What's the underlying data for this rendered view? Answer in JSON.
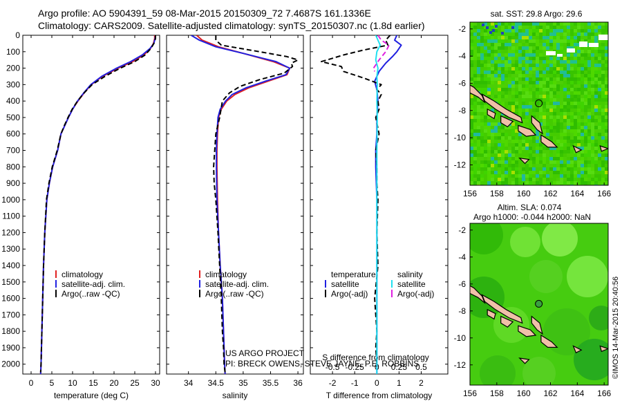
{
  "header": {
    "line1": "Argo profile: AO 5904391_59 08-Mar-2015 20150309_72 7.4687S 161.1336E",
    "line2": "Climatology: CARS2009. Satellite-adjusted climatology: synTS_20150307.nc (1.8d earlier)"
  },
  "credits": {
    "project": "US ARGO PROJECT",
    "pi": "PI: BRECK OWENS, STEVE JAYNE, P.E. ROBBINS",
    "stamp": "©IMOS 14-Mar-2015 20:40:56"
  },
  "colors": {
    "climatology": "#e02020",
    "satellite": "#2020e0",
    "argo": "#000000",
    "satellite_salinity": "#20e0f0",
    "argo_salinity": "#e020e0",
    "land": "#f0c0a8"
  },
  "chart_data": [
    {
      "type": "line",
      "xlabel": "temperature (deg C)",
      "ylabel": "",
      "xlim": [
        -2,
        31
      ],
      "ylim": [
        2060,
        0
      ],
      "xticks": [
        "0",
        "5",
        "10",
        "15",
        "20",
        "25",
        "30"
      ],
      "xtick_values": [
        0,
        5,
        10,
        15,
        20,
        25,
        30
      ],
      "yticks": [
        "0",
        "100",
        "200",
        "300",
        "400",
        "500",
        "600",
        "700",
        "800",
        "900",
        "1000",
        "1100",
        "1200",
        "1300",
        "1400",
        "1500",
        "1600",
        "1700",
        "1800",
        "1900",
        "2000"
      ],
      "ytick_values": [
        0,
        100,
        200,
        300,
        400,
        500,
        600,
        700,
        800,
        900,
        1000,
        1100,
        1200,
        1300,
        1400,
        1500,
        1600,
        1700,
        1800,
        1900,
        2000
      ],
      "legend": [
        "climatology",
        "satellite-adj. clim.",
        "Argo(..raw -QC)"
      ],
      "legend_placement": "lower-right",
      "series": [
        {
          "name": "climatology",
          "style": "solid",
          "color": "#e02020",
          "x": [
            29.8,
            29.8,
            29.5,
            28.8,
            27.2,
            24.5,
            21,
            17.2,
            14.5,
            12.8,
            11.3,
            10,
            9,
            8.1,
            7.2,
            6.4,
            5.2,
            4.4,
            3.8,
            3.3,
            3,
            2.8,
            2.6,
            2.4,
            2.3
          ],
          "y": [
            0,
            20,
            50,
            80,
            120,
            160,
            200,
            250,
            300,
            350,
            400,
            450,
            500,
            550,
            600,
            700,
            800,
            900,
            1000,
            1200,
            1400,
            1600,
            1800,
            2000,
            2060
          ]
        },
        {
          "name": "satellite-adj. clim.",
          "style": "solid",
          "color": "#2020e0",
          "x": [
            30,
            29.9,
            29.6,
            28.7,
            26.8,
            24,
            20.6,
            17,
            14.4,
            12.7,
            11.2,
            10,
            9,
            8.1,
            7.2,
            6.4,
            5.2,
            4.4,
            3.8,
            3.3,
            3,
            2.8,
            2.6,
            2.4,
            2.3
          ],
          "y": [
            0,
            20,
            50,
            80,
            120,
            160,
            200,
            250,
            300,
            350,
            400,
            450,
            500,
            550,
            600,
            700,
            800,
            900,
            1000,
            1200,
            1400,
            1600,
            1800,
            2000,
            2060
          ]
        },
        {
          "name": "Argo(..raw -QC)",
          "style": "dashed",
          "color": "#000000",
          "x": [
            30,
            30,
            29.6,
            28.9,
            27.5,
            25,
            21.5,
            17.8,
            14.7,
            12.8,
            11.2,
            9.9,
            8.9,
            8,
            7.2,
            6.3,
            5.1,
            4.3,
            3.7,
            3.3,
            3,
            2.8,
            2.6,
            2.4,
            2.3
          ],
          "y": [
            0,
            20,
            50,
            80,
            120,
            160,
            200,
            250,
            300,
            350,
            400,
            450,
            500,
            550,
            600,
            700,
            800,
            900,
            1000,
            1200,
            1400,
            1600,
            1800,
            2000,
            2050
          ]
        }
      ]
    },
    {
      "type": "line",
      "xlabel": "salinity",
      "ylabel": "",
      "xlim": [
        33.6,
        36.1
      ],
      "ylim": [
        2060,
        0
      ],
      "xticks": [
        "34",
        "34.5",
        "35",
        "35.5",
        "36"
      ],
      "xtick_values": [
        34,
        34.5,
        35,
        35.5,
        36
      ],
      "legend": [
        "climatology",
        "satellite-adj. clim.",
        "Argo(..raw -QC)"
      ],
      "legend_placement": "lower-right",
      "series": [
        {
          "name": "climatology",
          "style": "solid",
          "color": "#e02020",
          "x": [
            34.15,
            34.25,
            34.55,
            35.0,
            35.55,
            35.85,
            35.8,
            35.45,
            35.1,
            34.85,
            34.7,
            34.6,
            34.55,
            34.53,
            34.52,
            34.52,
            34.53,
            34.55,
            34.58,
            34.62,
            34.64,
            34.66,
            34.67
          ],
          "y": [
            0,
            30,
            70,
            110,
            160,
            200,
            240,
            280,
            320,
            360,
            400,
            450,
            500,
            600,
            700,
            800,
            1000,
            1200,
            1400,
            1600,
            1800,
            2000,
            2060
          ]
        },
        {
          "name": "satellite-adj. clim.",
          "style": "solid",
          "color": "#2020e0",
          "x": [
            34.05,
            34.2,
            34.5,
            35.0,
            35.6,
            35.85,
            35.78,
            35.4,
            35.05,
            34.8,
            34.68,
            34.58,
            34.54,
            34.52,
            34.51,
            34.51,
            34.52,
            34.55,
            34.58,
            34.62,
            34.64,
            34.66,
            34.67
          ],
          "y": [
            0,
            30,
            70,
            110,
            160,
            200,
            240,
            280,
            320,
            360,
            400,
            450,
            500,
            600,
            700,
            800,
            1000,
            1200,
            1400,
            1600,
            1800,
            2000,
            2060
          ]
        },
        {
          "name": "Argo(..raw -QC)",
          "style": "dashed",
          "color": "#000000",
          "x": [
            34.5,
            34.5,
            34.6,
            35.3,
            35.8,
            36.0,
            35.88,
            35.9,
            35.75,
            35.3,
            34.95,
            34.75,
            34.62,
            34.57,
            34.5,
            34.48,
            34.46,
            34.47,
            34.5,
            34.54,
            34.57,
            34.6,
            34.62,
            34.64,
            34.65,
            34.67
          ],
          "y": [
            0,
            30,
            60,
            100,
            130,
            150,
            170,
            190,
            230,
            270,
            310,
            350,
            400,
            500,
            600,
            700,
            800,
            900,
            1000,
            1200,
            1400,
            1600,
            1800,
            1900,
            2000,
            2050
          ]
        }
      ]
    },
    {
      "type": "line",
      "xlabel": "T difference from climatology",
      "xlabel_top": "S difference from climatology",
      "ylabel": "",
      "xlim": [
        -3,
        3.2
      ],
      "xlim_top": [
        -0.75,
        0.8
      ],
      "ylim": [
        2060,
        0
      ],
      "xticks": [
        "-2",
        "-1",
        "0",
        "1",
        "2"
      ],
      "xtick_values": [
        -2,
        -1,
        0,
        1,
        2
      ],
      "xticks_top": [
        "-0.5",
        "-0.25",
        "0",
        "0.25",
        "0.5"
      ],
      "xtick_values_top": [
        -0.5,
        -0.25,
        0,
        0.25,
        0.5
      ],
      "legend_headers": [
        "temperature",
        "salinity"
      ],
      "legend": [
        "satellite",
        "Argo(-adj)",
        "satellite",
        "Argo(-adj)"
      ],
      "legend_placement": "lower-right",
      "series": [
        {
          "name": "satellite",
          "group": "temperature",
          "style": "solid",
          "color": "#2020e0",
          "x": [
            0.9,
            0.8,
            1.1,
            0.9,
            0.7,
            0.4,
            0.1,
            -0.1,
            0,
            0.05,
            0,
            0,
            -0.05,
            -0.05,
            0,
            0,
            0,
            0,
            0,
            0,
            0
          ],
          "y": [
            0,
            30,
            60,
            100,
            130,
            170,
            220,
            280,
            330,
            400,
            500,
            600,
            700,
            800,
            1000,
            1200,
            1400,
            1600,
            1800,
            2000,
            2060
          ]
        },
        {
          "name": "Argo(-adj)",
          "group": "temperature",
          "style": "dashed",
          "color": "#000000",
          "x": [
            0.6,
            0.4,
            0.5,
            -0.6,
            -1.5,
            -2.5,
            -1.6,
            -1.5,
            -0.6,
            0.2,
            0,
            0.2,
            0.05,
            0.1,
            -0.05,
            0.1,
            -0.05,
            0,
            0,
            0.05,
            0,
            0.05,
            -0.1,
            0,
            -0.05,
            0
          ],
          "y": [
            0,
            30,
            60,
            90,
            120,
            160,
            190,
            220,
            260,
            300,
            330,
            360,
            400,
            450,
            500,
            600,
            700,
            800,
            900,
            1000,
            1200,
            1400,
            1600,
            1800,
            1900,
            2000
          ]
        },
        {
          "name": "satellite",
          "group": "salinity",
          "style": "solid",
          "color": "#20e0f0",
          "x": [
            -0.05,
            0.05,
            0.15,
            0.0,
            -0.05,
            0.05,
            0.0,
            0.02,
            0.0,
            0.02,
            0.0,
            0.0,
            0.0,
            0.0,
            0.0,
            0.0,
            0.0
          ],
          "y": [
            0,
            30,
            60,
            100,
            150,
            200,
            250,
            300,
            400,
            500,
            700,
            900,
            1100,
            1300,
            1600,
            1900,
            2060
          ]
        },
        {
          "name": "Argo(-adj)",
          "group": "salinity",
          "style": "dashed",
          "color": "#e020e0",
          "x": [
            0.05,
            0.2,
            0.55,
            0.4,
            0.1,
            -0.15,
            -0.1
          ],
          "y": [
            0,
            30,
            60,
            100,
            150,
            200,
            220
          ]
        }
      ]
    },
    {
      "type": "heatmap",
      "title": "sat. SST: 29.8  Argo: 29.6",
      "xlim": [
        156,
        166.3
      ],
      "ylim": [
        -13.5,
        -1.5
      ],
      "xticks": [
        "156",
        "158",
        "160",
        "162",
        "164",
        "166"
      ],
      "xtick_values": [
        156,
        158,
        160,
        162,
        164,
        166
      ],
      "yticks": [
        "-2",
        "-4",
        "-6",
        "-8",
        "-10",
        "-12"
      ],
      "ytick_values": [
        -2,
        -4,
        -6,
        -8,
        -10,
        -12
      ],
      "marker": {
        "lon": 161.13,
        "lat": -7.47
      }
    },
    {
      "type": "heatmap",
      "title_line1": "Altim. SLA: 0.074",
      "title_line2": "Argo h1000: -0.044  h2000: NaN",
      "xlim": [
        156,
        166.3
      ],
      "ylim": [
        -13.5,
        -1.5
      ],
      "xticks": [
        "156",
        "158",
        "160",
        "162",
        "164",
        "166"
      ],
      "xtick_values": [
        156,
        158,
        160,
        162,
        164,
        166
      ],
      "yticks": [
        "-2",
        "-4",
        "-6",
        "-8",
        "-10",
        "-12"
      ],
      "ytick_values": [
        -2,
        -4,
        -6,
        -8,
        -10,
        -12
      ],
      "marker": {
        "lon": 161.13,
        "lat": -7.47
      }
    }
  ]
}
